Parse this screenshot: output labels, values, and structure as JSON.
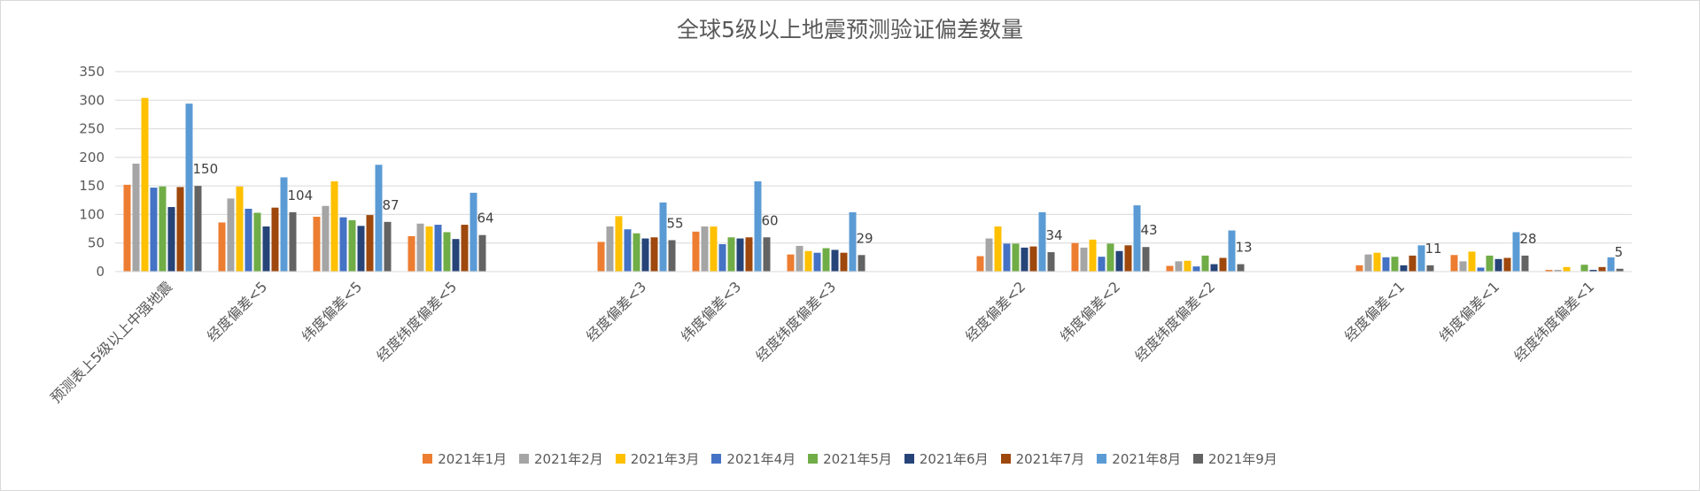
{
  "chart_data": {
    "type": "bar",
    "title": "全球5级以上地震预测验证偏差数量",
    "ylim": [
      0,
      350
    ],
    "yticks": [
      0,
      50,
      100,
      150,
      200,
      250,
      300,
      350
    ],
    "grid": true,
    "legend_position": "bottom",
    "categories": [
      "预测表上5级以上中强地震",
      "经度偏差<5",
      "纬度偏差<5",
      "经度纬度偏差<5",
      "",
      "经度偏差<3",
      "纬度偏差<3",
      "经度纬度偏差<3",
      "",
      "经度偏差<2",
      "纬度偏差<2",
      "经度纬度偏差<2",
      "",
      "经度偏差<1",
      "纬度偏差<1",
      "经度纬度偏差<1"
    ],
    "series": [
      {
        "name": "2021年1月",
        "color": "#ed7d31",
        "values": [
          152,
          86,
          96,
          62,
          null,
          52,
          70,
          30,
          null,
          27,
          50,
          10,
          null,
          11,
          29,
          3
        ]
      },
      {
        "name": "2021年2月",
        "color": "#a5a5a5",
        "values": [
          189,
          128,
          115,
          84,
          null,
          79,
          79,
          45,
          null,
          58,
          42,
          18,
          null,
          30,
          18,
          3
        ]
      },
      {
        "name": "2021年3月",
        "color": "#ffc000",
        "values": [
          304,
          149,
          158,
          79,
          null,
          97,
          79,
          36,
          null,
          79,
          56,
          19,
          null,
          33,
          35,
          8
        ]
      },
      {
        "name": "2021年4月",
        "color": "#4472c4",
        "values": [
          147,
          110,
          95,
          82,
          null,
          74,
          48,
          33,
          null,
          49,
          26,
          9,
          null,
          25,
          7,
          0
        ]
      },
      {
        "name": "2021年5月",
        "color": "#70ad47",
        "values": [
          149,
          103,
          90,
          69,
          null,
          67,
          60,
          41,
          null,
          49,
          49,
          28,
          null,
          26,
          28,
          12
        ]
      },
      {
        "name": "2021年6月",
        "color": "#264478",
        "values": [
          113,
          79,
          80,
          57,
          null,
          58,
          58,
          38,
          null,
          42,
          36,
          13,
          null,
          11,
          22,
          3
        ]
      },
      {
        "name": "2021年7月",
        "color": "#9e480e",
        "values": [
          148,
          112,
          99,
          82,
          null,
          60,
          60,
          33,
          null,
          44,
          46,
          24,
          null,
          28,
          24,
          8
        ]
      },
      {
        "name": "2021年8月",
        "color": "#5b9bd5",
        "values": [
          294,
          165,
          187,
          138,
          null,
          121,
          158,
          104,
          null,
          104,
          116,
          72,
          null,
          46,
          69,
          25
        ]
      },
      {
        "name": "2021年9月",
        "color": "#636363",
        "values": [
          150,
          104,
          87,
          64,
          null,
          55,
          60,
          29,
          null,
          34,
          43,
          13,
          null,
          11,
          28,
          5
        ]
      }
    ],
    "data_labels_series": "2021年9月"
  }
}
